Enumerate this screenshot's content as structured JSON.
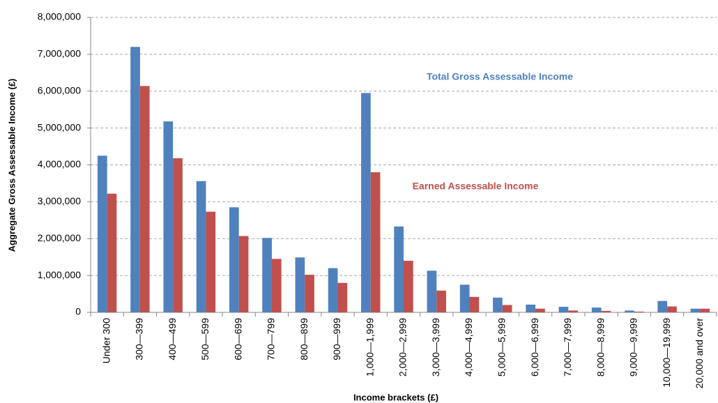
{
  "chart_data": {
    "type": "bar",
    "x_label": "Income brackets (£)",
    "y_label": "Aggregate Gross Assessable Income (£)",
    "categories": [
      "Under 300",
      "300—399",
      "400—499",
      "500—599",
      "600—699",
      "700—799",
      "800—899",
      "900—999",
      "1,000—1,999",
      "2,000—2,999",
      "3,000—3,999",
      "4,000—4,999",
      "5,000—5,999",
      "6,000—6,999",
      "7,000—7,999",
      "8,000—8,999",
      "9,000—9,999",
      "10,000—19,999",
      "20,000 and over"
    ],
    "series": [
      {
        "name": "Total Gross Assessable Income",
        "color": "#4f81bd",
        "values": [
          4250000,
          7200000,
          5180000,
          3560000,
          2850000,
          2020000,
          1490000,
          1200000,
          5950000,
          2330000,
          1130000,
          750000,
          400000,
          210000,
          150000,
          130000,
          50000,
          310000,
          100000
        ]
      },
      {
        "name": "Earned Assessable Income",
        "color": "#c0504d",
        "values": [
          3220000,
          6140000,
          4180000,
          2730000,
          2070000,
          1450000,
          1020000,
          800000,
          3800000,
          1400000,
          590000,
          420000,
          200000,
          100000,
          50000,
          40000,
          20000,
          160000,
          100000
        ]
      }
    ],
    "ylim": [
      0,
      8000000
    ],
    "yticks": [
      0,
      {
        "value": 1000000,
        "label": "1,000,000"
      },
      {
        "value": 2000000,
        "label": "2,000,000"
      },
      {
        "value": 3000000,
        "label": "3,000,000"
      },
      {
        "value": 4000000,
        "label": "4,000,000"
      },
      {
        "value": 5000000,
        "label": "5,000,000"
      },
      {
        "value": 6000000,
        "label": "6,000,000"
      },
      {
        "value": 7000000,
        "label": "7,000,000"
      },
      {
        "value": 8000000,
        "label": "8,000,000"
      }
    ],
    "grid": true
  }
}
